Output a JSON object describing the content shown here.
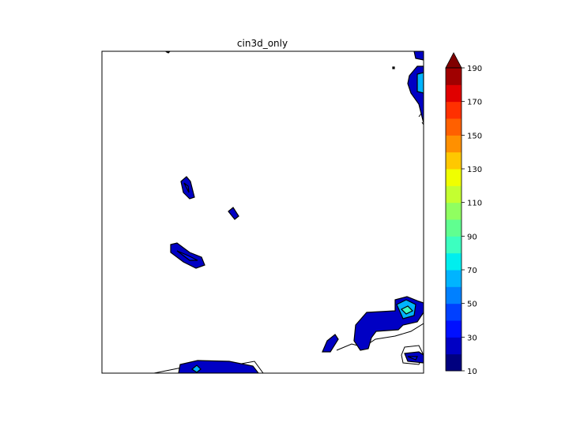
{
  "chart_data": {
    "type": "contourf",
    "title": "cin3d_only",
    "xlabel": "",
    "ylabel": "",
    "colorbar": {
      "levels": [
        10,
        20,
        30,
        40,
        50,
        60,
        70,
        80,
        90,
        100,
        110,
        120,
        130,
        140,
        150,
        160,
        170,
        180,
        190
      ],
      "tick_labels": [
        "10",
        "30",
        "50",
        "70",
        "90",
        "110",
        "130",
        "150",
        "170",
        "190"
      ],
      "extend": "max",
      "colors": [
        "#00007f",
        "#0000c4",
        "#0010ff",
        "#0040ff",
        "#0080ff",
        "#00b4ff",
        "#00eeee",
        "#3cffc0",
        "#60ff90",
        "#90ff60",
        "#c4ff30",
        "#f0ff00",
        "#ffc800",
        "#ff9000",
        "#ff6000",
        "#ff3000",
        "#e00000",
        "#a00000",
        "#800000"
      ]
    },
    "map_features": [
      "coastlines"
    ],
    "filled_regions_value_range": [
      10,
      100
    ]
  }
}
